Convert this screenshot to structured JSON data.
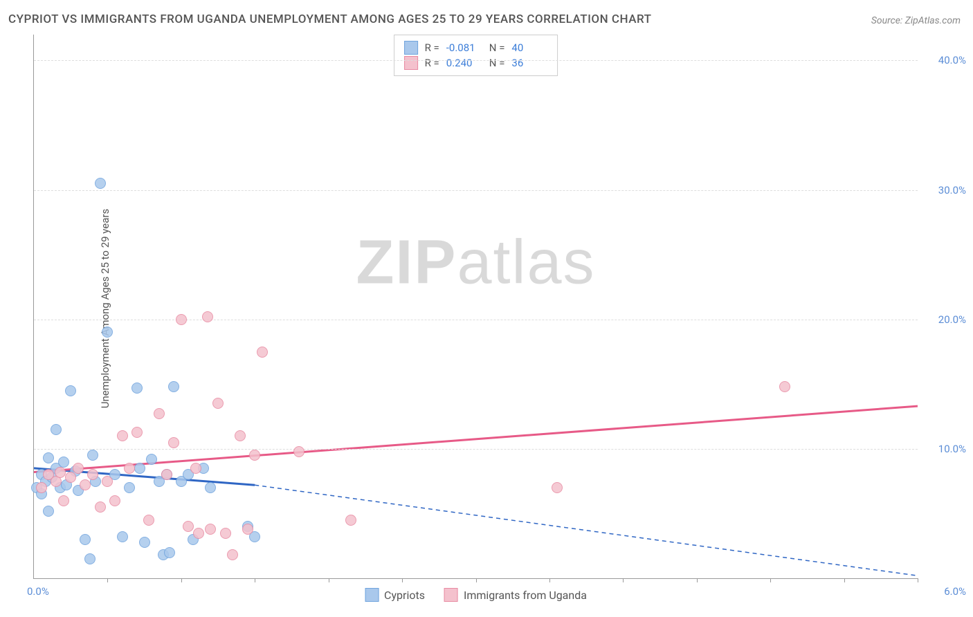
{
  "title": "CYPRIOT VS IMMIGRANTS FROM UGANDA UNEMPLOYMENT AMONG AGES 25 TO 29 YEARS CORRELATION CHART",
  "source": "Source: ZipAtlas.com",
  "y_axis_label": "Unemployment Among Ages 25 to 29 years",
  "watermark": "ZIPatlas",
  "chart": {
    "type": "scatter-correlation",
    "background_color": "#ffffff",
    "grid_color": "#dddddd",
    "axis_color": "#999999",
    "tick_label_color": "#5b8dd6",
    "xlim": [
      0.0,
      6.0
    ],
    "ylim": [
      0.0,
      42.0
    ],
    "y_ticks": [
      10.0,
      20.0,
      30.0,
      40.0
    ],
    "y_tick_labels": [
      "10.0%",
      "20.0%",
      "30.0%",
      "40.0%"
    ],
    "x_origin_label": "0.0%",
    "x_right_label": "6.0%",
    "x_tick_positions": [
      0.5,
      1.0,
      1.5,
      2.0,
      2.5,
      3.0,
      3.5,
      4.0,
      4.5,
      5.0,
      5.5,
      6.0
    ],
    "series": [
      {
        "name": "Cypriots",
        "color_fill": "#a9c8ec",
        "color_stroke": "#6fa3dd",
        "r_value": "-0.081",
        "n_value": "40",
        "trend": {
          "x1": 0.0,
          "y1": 8.5,
          "x2_solid": 1.5,
          "y2_solid": 7.2,
          "x2": 6.0,
          "y2": 0.2,
          "color": "#2f66c4"
        },
        "points": [
          {
            "x": 0.02,
            "y": 7.0
          },
          {
            "x": 0.05,
            "y": 6.5
          },
          {
            "x": 0.05,
            "y": 8.0
          },
          {
            "x": 0.08,
            "y": 7.5
          },
          {
            "x": 0.1,
            "y": 5.2
          },
          {
            "x": 0.1,
            "y": 9.3
          },
          {
            "x": 0.12,
            "y": 7.8
          },
          {
            "x": 0.15,
            "y": 8.5
          },
          {
            "x": 0.15,
            "y": 11.5
          },
          {
            "x": 0.18,
            "y": 7.0
          },
          {
            "x": 0.2,
            "y": 9.0
          },
          {
            "x": 0.22,
            "y": 7.2
          },
          {
            "x": 0.25,
            "y": 14.5
          },
          {
            "x": 0.28,
            "y": 8.3
          },
          {
            "x": 0.3,
            "y": 6.8
          },
          {
            "x": 0.35,
            "y": 3.0
          },
          {
            "x": 0.38,
            "y": 1.5
          },
          {
            "x": 0.4,
            "y": 9.5
          },
          {
            "x": 0.42,
            "y": 7.5
          },
          {
            "x": 0.45,
            "y": 30.5
          },
          {
            "x": 0.5,
            "y": 19.0
          },
          {
            "x": 0.55,
            "y": 8.0
          },
          {
            "x": 0.6,
            "y": 3.2
          },
          {
            "x": 0.65,
            "y": 7.0
          },
          {
            "x": 0.7,
            "y": 14.7
          },
          {
            "x": 0.72,
            "y": 8.5
          },
          {
            "x": 0.75,
            "y": 2.8
          },
          {
            "x": 0.8,
            "y": 9.2
          },
          {
            "x": 0.85,
            "y": 7.5
          },
          {
            "x": 0.88,
            "y": 1.8
          },
          {
            "x": 0.9,
            "y": 8.0
          },
          {
            "x": 0.92,
            "y": 2.0
          },
          {
            "x": 0.95,
            "y": 14.8
          },
          {
            "x": 1.0,
            "y": 7.5
          },
          {
            "x": 1.05,
            "y": 8.0
          },
          {
            "x": 1.08,
            "y": 3.0
          },
          {
            "x": 1.15,
            "y": 8.5
          },
          {
            "x": 1.2,
            "y": 7.0
          },
          {
            "x": 1.45,
            "y": 4.0
          },
          {
            "x": 1.5,
            "y": 3.2
          }
        ]
      },
      {
        "name": "Immigrants from Uganda",
        "color_fill": "#f4c1cd",
        "color_stroke": "#e88aa2",
        "r_value": "0.240",
        "n_value": "36",
        "trend": {
          "x1": 0.0,
          "y1": 8.2,
          "x2": 6.0,
          "y2": 13.3,
          "color": "#e75a87"
        },
        "points": [
          {
            "x": 0.05,
            "y": 7.0
          },
          {
            "x": 0.1,
            "y": 8.0
          },
          {
            "x": 0.15,
            "y": 7.5
          },
          {
            "x": 0.18,
            "y": 8.2
          },
          {
            "x": 0.2,
            "y": 6.0
          },
          {
            "x": 0.25,
            "y": 7.8
          },
          {
            "x": 0.3,
            "y": 8.5
          },
          {
            "x": 0.35,
            "y": 7.2
          },
          {
            "x": 0.4,
            "y": 8.0
          },
          {
            "x": 0.45,
            "y": 5.5
          },
          {
            "x": 0.5,
            "y": 7.5
          },
          {
            "x": 0.55,
            "y": 6.0
          },
          {
            "x": 0.6,
            "y": 11.0
          },
          {
            "x": 0.65,
            "y": 8.5
          },
          {
            "x": 0.7,
            "y": 11.3
          },
          {
            "x": 0.78,
            "y": 4.5
          },
          {
            "x": 0.85,
            "y": 12.7
          },
          {
            "x": 0.9,
            "y": 8.0
          },
          {
            "x": 0.95,
            "y": 10.5
          },
          {
            "x": 1.0,
            "y": 20.0
          },
          {
            "x": 1.05,
            "y": 4.0
          },
          {
            "x": 1.1,
            "y": 8.5
          },
          {
            "x": 1.12,
            "y": 3.5
          },
          {
            "x": 1.18,
            "y": 20.2
          },
          {
            "x": 1.2,
            "y": 3.8
          },
          {
            "x": 1.25,
            "y": 13.5
          },
          {
            "x": 1.3,
            "y": 3.5
          },
          {
            "x": 1.35,
            "y": 1.8
          },
          {
            "x": 1.4,
            "y": 11.0
          },
          {
            "x": 1.45,
            "y": 3.8
          },
          {
            "x": 1.5,
            "y": 9.5
          },
          {
            "x": 1.55,
            "y": 17.5
          },
          {
            "x": 1.8,
            "y": 9.8
          },
          {
            "x": 2.15,
            "y": 4.5
          },
          {
            "x": 3.55,
            "y": 7.0
          },
          {
            "x": 5.1,
            "y": 14.8
          }
        ]
      }
    ],
    "legend_bottom": [
      {
        "label": "Cypriots",
        "fill": "#a9c8ec",
        "stroke": "#6fa3dd"
      },
      {
        "label": "Immigrants from Uganda",
        "fill": "#f4c1cd",
        "stroke": "#e88aa2"
      }
    ]
  }
}
